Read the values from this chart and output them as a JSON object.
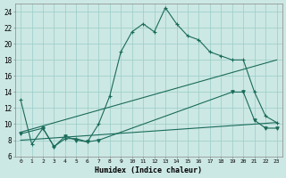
{
  "xlabel": "Humidex (Indice chaleur)",
  "xlim": [
    -0.5,
    23.5
  ],
  "ylim": [
    6,
    25
  ],
  "yticks": [
    6,
    8,
    10,
    12,
    14,
    16,
    18,
    20,
    22,
    24
  ],
  "background_color": "#cce8e4",
  "grid_color": "#99ccc6",
  "line_color": "#1a6b5a",
  "line1_x": [
    0,
    1,
    2,
    3,
    4,
    5,
    6,
    7,
    8,
    9,
    10,
    11,
    12,
    13,
    14,
    15,
    16,
    17,
    18,
    19,
    20,
    21,
    22,
    23
  ],
  "line1_y": [
    13,
    7.5,
    9.5,
    7.2,
    8.2,
    8.2,
    7.8,
    10,
    13.5,
    19,
    21.5,
    22.5,
    21.5,
    24.5,
    22.5,
    21,
    20.5,
    19,
    18.5,
    18,
    18,
    14,
    11,
    10.2
  ],
  "line2_x": [
    0,
    2,
    3,
    4,
    5,
    6,
    7,
    19,
    20,
    21,
    22,
    23
  ],
  "line2_y": [
    8.8,
    9.5,
    7.2,
    8.5,
    8.0,
    7.8,
    8.0,
    14.0,
    14.0,
    10.5,
    9.5,
    9.5
  ],
  "line3_x": [
    0,
    23
  ],
  "line3_y": [
    8.0,
    10.2
  ],
  "line4_x": [
    0,
    23
  ],
  "line4_y": [
    9.0,
    18.0
  ]
}
